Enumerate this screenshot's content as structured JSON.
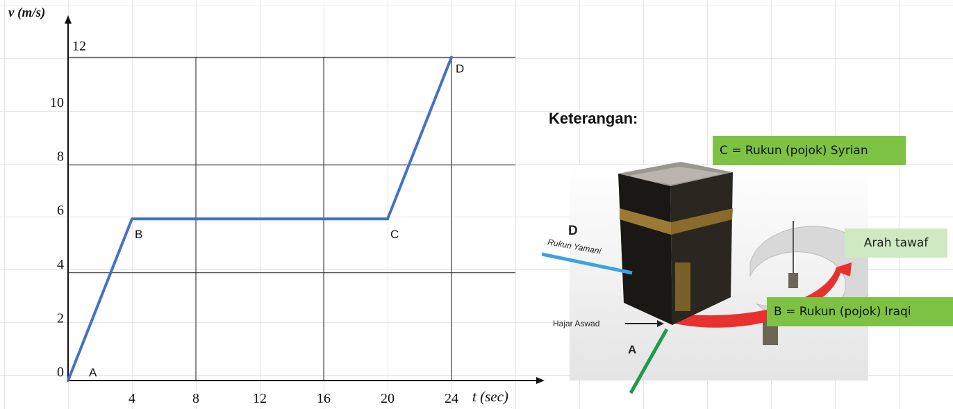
{
  "chart_data": {
    "type": "line",
    "ylabel": "v (m/s)",
    "xlabel": "t (sec)",
    "x_ticks": [
      4,
      8,
      12,
      16,
      20,
      24
    ],
    "y_ticks": [
      0,
      2,
      4,
      6,
      8,
      10,
      12
    ],
    "xlim": [
      0,
      28
    ],
    "ylim": [
      0,
      12
    ],
    "grid": true,
    "series": [
      {
        "color": "#4472c4",
        "points": [
          {
            "x": 0,
            "y": 0
          },
          {
            "x": 4,
            "y": 6
          },
          {
            "x": 20,
            "y": 6
          },
          {
            "x": 24,
            "y": 12
          }
        ]
      }
    ],
    "point_labels": [
      "A",
      "B",
      "C",
      "D"
    ]
  },
  "legend": {
    "title": "Keterangan:",
    "label_c": "C = Rukun (pojok) Syrian",
    "label_b": "B = Rukun (pojok) Iraqi",
    "label_tawaf": "Arah tawaf",
    "label_d": "D",
    "label_a": "A",
    "rukun_yamani": "Rukun Yamani",
    "hajar_aswad": "Hajar Aswad",
    "colors": {
      "green": "#7dc243",
      "light_green": "#cfe9c3",
      "red_arrow": "#e8312f",
      "blue_line": "#3ba3e0",
      "green_line": "#1f9a4a"
    }
  }
}
